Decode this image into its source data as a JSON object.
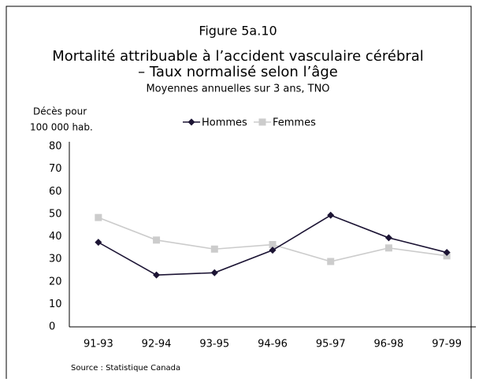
{
  "chart_data": {
    "type": "line",
    "title": "Figure 5a.10",
    "subtitle": [
      "Mortalité attribuable à l’accident vasculaire cérébral",
      "– Taux normalisé selon l’âge"
    ],
    "note": "Moyennes annuelles sur 3 ans, TNO",
    "y_label": [
      "Décès pour",
      "100 000 hab."
    ],
    "source": "Source : Statistique Canada",
    "categories": [
      "91-93",
      "92-94",
      "93-95",
      "94-96",
      "95-97",
      "96-98",
      "97-99"
    ],
    "series": [
      {
        "name": "Hommes",
        "color": "#1c1434",
        "marker": "diamond",
        "values": [
          37.5,
          23,
          24,
          34,
          49.5,
          39.5,
          33
        ]
      },
      {
        "name": "Femmes",
        "color": "#cccccc",
        "marker": "square",
        "values": [
          48.5,
          38.5,
          34.5,
          36.5,
          29,
          35,
          31.5
        ]
      }
    ],
    "ylim": [
      0,
      80
    ],
    "yticks": [
      0,
      10,
      20,
      30,
      40,
      50,
      60,
      70,
      80
    ],
    "grid": false
  }
}
